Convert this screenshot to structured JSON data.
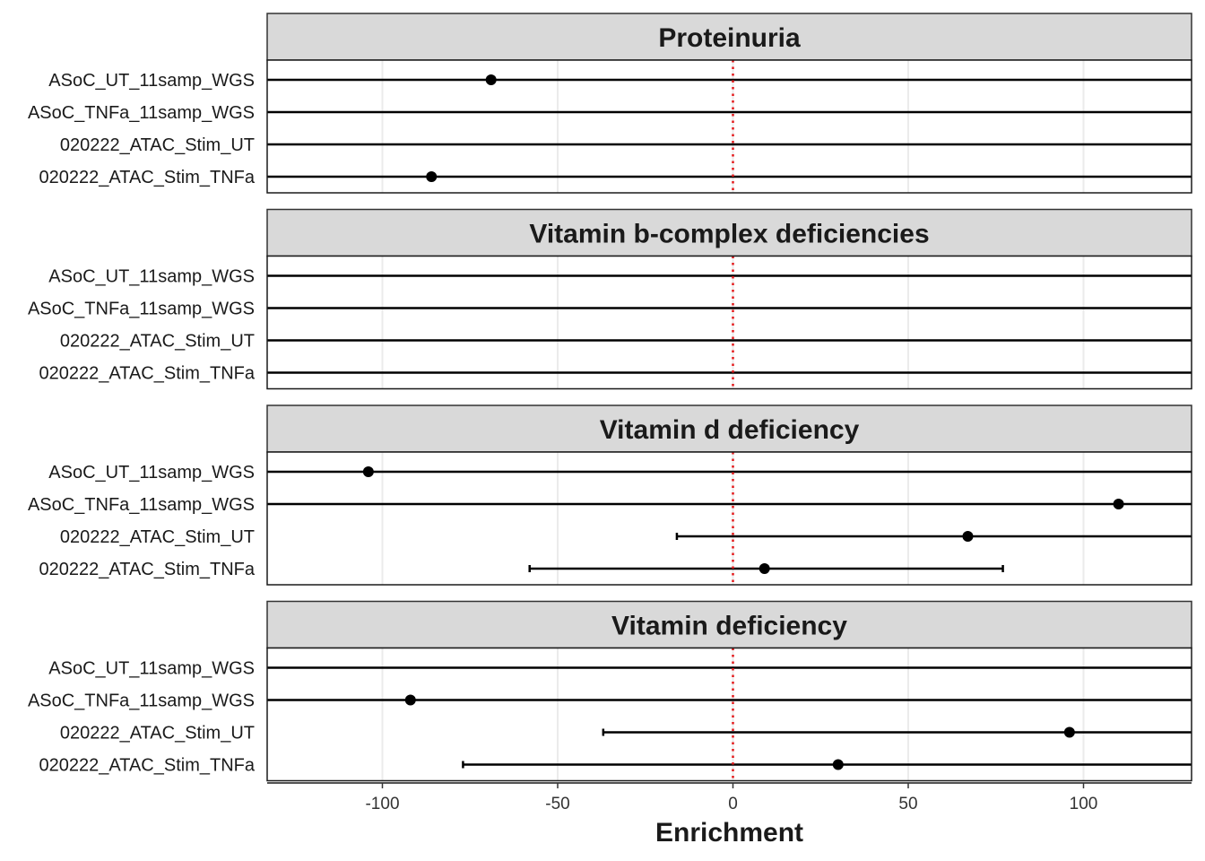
{
  "chart_data": {
    "type": "scatter",
    "subtype": "faceted forest plot (point estimate with confidence interval whiskers)",
    "xlabel": "Enrichment",
    "xlim": [
      -132,
      132
    ],
    "x_ticks": [
      -100,
      -50,
      0,
      50,
      100
    ],
    "x_tick_labels": [
      "-100",
      "-50",
      "0",
      "50",
      "100"
    ],
    "reference_line": {
      "x": 0,
      "style": "dotted",
      "color": "#e41a1c"
    },
    "grid": true,
    "categories": [
      "ASoC_UT_11samp_WGS",
      "ASoC_TNFa_11samp_WGS",
      "020222_ATAC_Stim_UT",
      "020222_ATAC_Stim_TNFa"
    ],
    "facets": [
      {
        "title": "Proteinuria",
        "rows": [
          {
            "label": "ASoC_UT_11samp_WGS",
            "estimate": -69,
            "ci_low": null,
            "ci_high": null
          },
          {
            "label": "ASoC_TNFa_11samp_WGS",
            "estimate": null,
            "ci_low": null,
            "ci_high": null
          },
          {
            "label": "020222_ATAC_Stim_UT",
            "estimate": null,
            "ci_low": null,
            "ci_high": null
          },
          {
            "label": "020222_ATAC_Stim_TNFa",
            "estimate": -86,
            "ci_low": null,
            "ci_high": null
          }
        ]
      },
      {
        "title": "Vitamin b-complex deficiencies",
        "rows": [
          {
            "label": "ASoC_UT_11samp_WGS",
            "estimate": null,
            "ci_low": null,
            "ci_high": null
          },
          {
            "label": "ASoC_TNFa_11samp_WGS",
            "estimate": null,
            "ci_low": null,
            "ci_high": null
          },
          {
            "label": "020222_ATAC_Stim_UT",
            "estimate": null,
            "ci_low": null,
            "ci_high": null
          },
          {
            "label": "020222_ATAC_Stim_TNFa",
            "estimate": null,
            "ci_low": null,
            "ci_high": null
          }
        ]
      },
      {
        "title": "Vitamin d deficiency",
        "rows": [
          {
            "label": "ASoC_UT_11samp_WGS",
            "estimate": -104,
            "ci_low": null,
            "ci_high": null
          },
          {
            "label": "ASoC_TNFa_11samp_WGS",
            "estimate": 110,
            "ci_low": null,
            "ci_high": null
          },
          {
            "label": "020222_ATAC_Stim_UT",
            "estimate": 67,
            "ci_low": -16,
            "ci_high": null
          },
          {
            "label": "020222_ATAC_Stim_TNFa",
            "estimate": 9,
            "ci_low": -58,
            "ci_high": 77
          }
        ]
      },
      {
        "title": "Vitamin deficiency",
        "rows": [
          {
            "label": "ASoC_UT_11samp_WGS",
            "estimate": null,
            "ci_low": null,
            "ci_high": null
          },
          {
            "label": "ASoC_TNFa_11samp_WGS",
            "estimate": -92,
            "ci_low": null,
            "ci_high": null
          },
          {
            "label": "020222_ATAC_Stim_UT",
            "estimate": 96,
            "ci_low": -37,
            "ci_high": null
          },
          {
            "label": "020222_ATAC_Stim_TNFa",
            "estimate": 30,
            "ci_low": -77,
            "ci_high": null
          }
        ]
      }
    ],
    "colors": {
      "strip_fill": "#d9d9d9",
      "strip_border": "#333333",
      "grid": "#ebebeb",
      "interval": "#000000",
      "point": "#000000",
      "reference": "#e41a1c"
    }
  }
}
